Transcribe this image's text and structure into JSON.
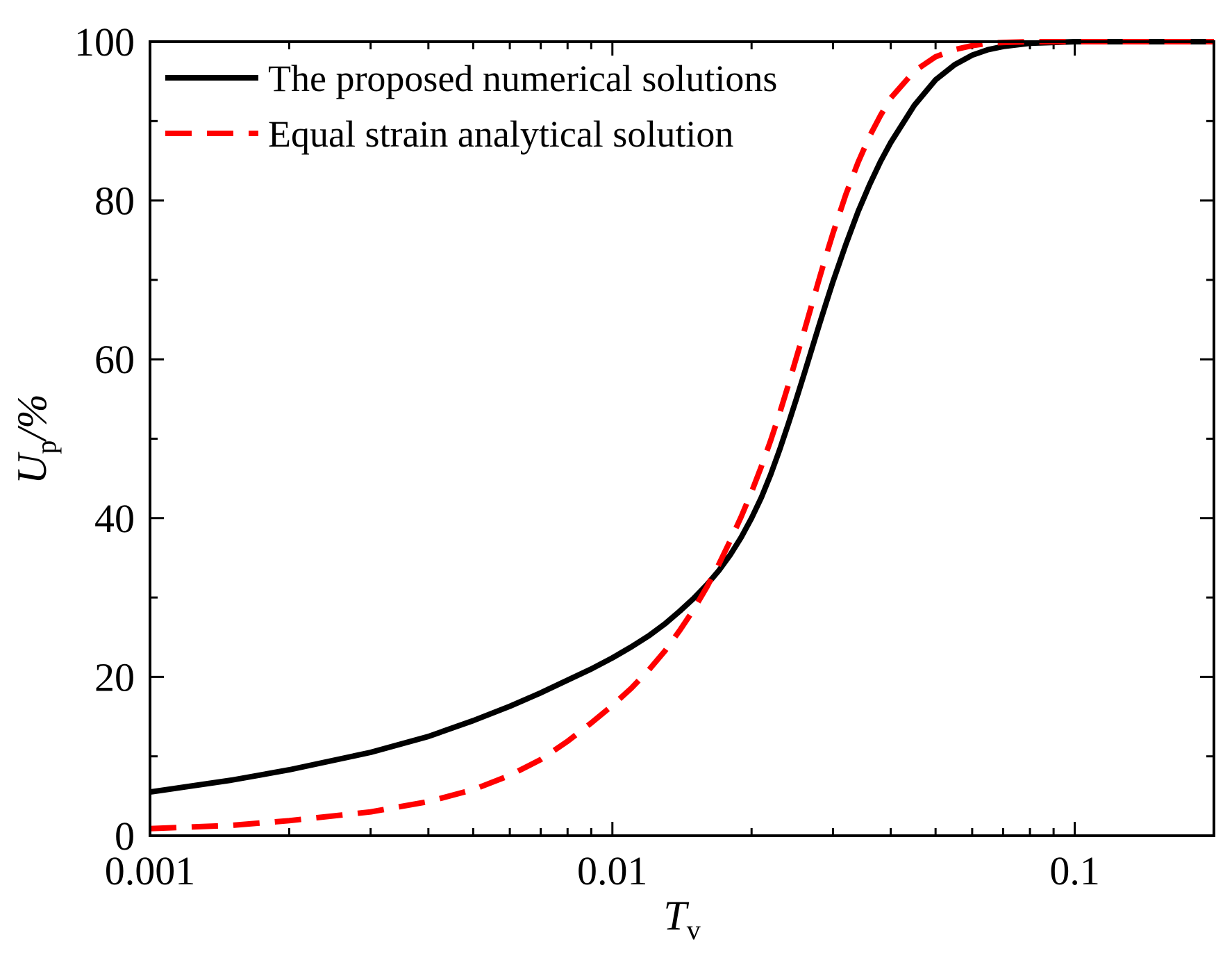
{
  "chart_data": {
    "type": "line",
    "xscale": "log",
    "xlim": [
      0.001,
      0.2
    ],
    "ylim": [
      0,
      100
    ],
    "xticks": [
      {
        "value": 0.001,
        "label": "0.001"
      },
      {
        "value": 0.01,
        "label": "0.01"
      },
      {
        "value": 0.1,
        "label": "0.1"
      }
    ],
    "yticks": [
      {
        "value": 0,
        "label": "0"
      },
      {
        "value": 20,
        "label": "20"
      },
      {
        "value": 40,
        "label": "40"
      },
      {
        "value": 60,
        "label": "60"
      },
      {
        "value": 80,
        "label": "80"
      },
      {
        "value": 100,
        "label": "100"
      }
    ],
    "xlabel": {
      "main": "T",
      "sub": "v"
    },
    "ylabel": {
      "main": "U",
      "sub": "p",
      "suffix": "/%"
    },
    "legend_position": "top-left",
    "series": [
      {
        "name": "The proposed numerical solutions",
        "color": "#000000",
        "style": "solid",
        "x": [
          0.001,
          0.0015,
          0.002,
          0.003,
          0.004,
          0.005,
          0.006,
          0.007,
          0.008,
          0.009,
          0.01,
          0.011,
          0.012,
          0.013,
          0.014,
          0.015,
          0.016,
          0.017,
          0.018,
          0.019,
          0.02,
          0.021,
          0.022,
          0.023,
          0.024,
          0.025,
          0.026,
          0.027,
          0.028,
          0.029,
          0.03,
          0.032,
          0.034,
          0.036,
          0.038,
          0.04,
          0.045,
          0.05,
          0.055,
          0.06,
          0.065,
          0.07,
          0.08,
          0.09,
          0.1,
          0.12,
          0.15,
          0.2
        ],
        "y": [
          5.5,
          7.0,
          8.3,
          10.5,
          12.5,
          14.5,
          16.3,
          18.0,
          19.6,
          21.0,
          22.4,
          23.8,
          25.2,
          26.7,
          28.3,
          29.9,
          31.6,
          33.4,
          35.4,
          37.6,
          40.0,
          42.6,
          45.5,
          48.6,
          51.8,
          55.0,
          58.2,
          61.3,
          64.3,
          67.1,
          69.8,
          74.5,
          78.6,
          82.0,
          84.9,
          87.3,
          92.0,
          95.2,
          97.1,
          98.3,
          99.0,
          99.4,
          99.8,
          99.9,
          100,
          100,
          100,
          100
        ]
      },
      {
        "name": "Equal strain analytical solution",
        "color": "#ff0000",
        "style": "dashed",
        "x": [
          0.001,
          0.0015,
          0.002,
          0.003,
          0.004,
          0.005,
          0.006,
          0.007,
          0.008,
          0.009,
          0.01,
          0.011,
          0.012,
          0.013,
          0.014,
          0.015,
          0.016,
          0.017,
          0.018,
          0.019,
          0.02,
          0.021,
          0.022,
          0.023,
          0.024,
          0.025,
          0.026,
          0.027,
          0.028,
          0.029,
          0.03,
          0.032,
          0.034,
          0.036,
          0.038,
          0.04,
          0.045,
          0.05,
          0.055,
          0.06,
          0.065,
          0.07,
          0.08,
          0.09,
          0.1,
          0.12,
          0.15,
          0.2
        ],
        "y": [
          0.9,
          1.3,
          1.9,
          3.0,
          4.3,
          5.8,
          7.6,
          9.6,
          11.9,
          14.2,
          16.4,
          18.6,
          20.9,
          23.3,
          25.9,
          28.5,
          31.3,
          34.2,
          37.2,
          40.2,
          43.3,
          46.5,
          49.8,
          53.2,
          56.7,
          60.2,
          63.6,
          66.9,
          70.1,
          73.1,
          75.9,
          80.8,
          84.8,
          88.1,
          90.7,
          92.9,
          96.3,
          98.1,
          99.0,
          99.5,
          99.8,
          99.9,
          100,
          100,
          100,
          100,
          100,
          100
        ]
      }
    ]
  }
}
